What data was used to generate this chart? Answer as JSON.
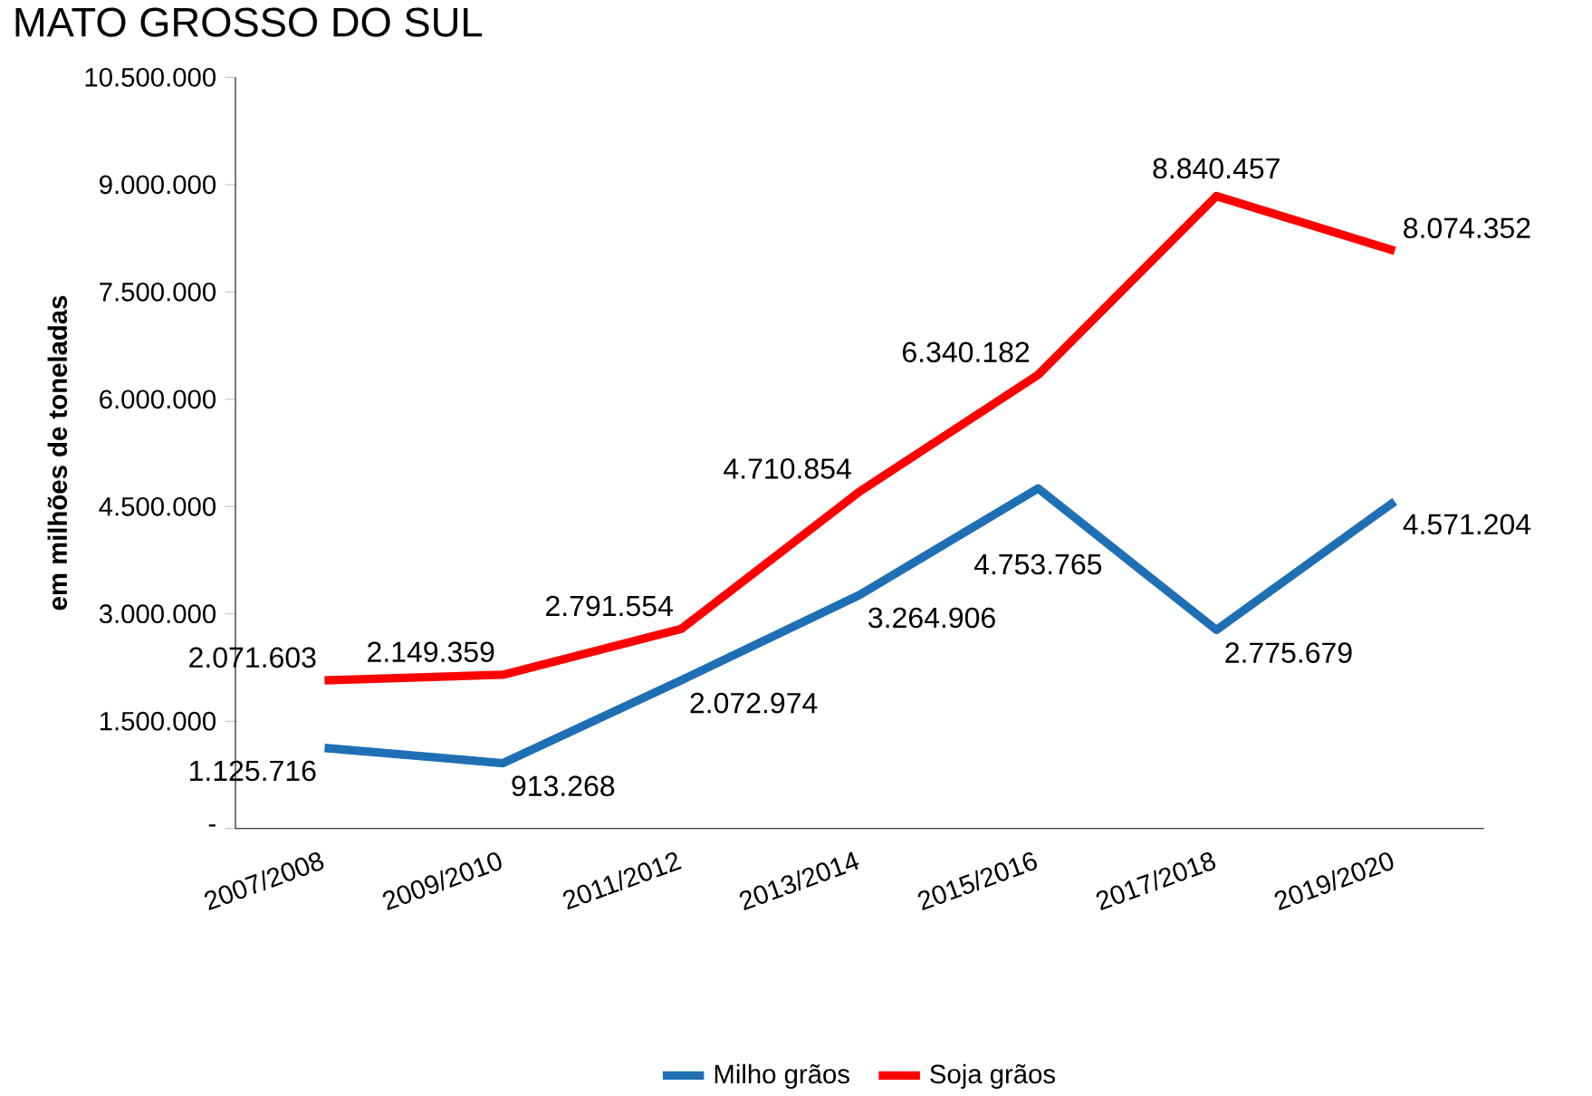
{
  "chart_data": {
    "type": "line",
    "title": "MATO GROSSO DO SUL",
    "ylabel": "em milhões de toneladas",
    "categories": [
      "2007/2008",
      "2009/2010",
      "2011/2012",
      "2013/2014",
      "2015/2016",
      "2017/2018",
      "2019/2020"
    ],
    "series": [
      {
        "name": "Milho grãos",
        "color": "#1f6fb5",
        "values": [
          1125716,
          913268,
          2072974,
          3264906,
          4753765,
          2775679,
          4571204
        ],
        "value_labels": [
          "1.125.716",
          "913.268",
          "2.072.974",
          "3.264.906",
          "4.753.765",
          "2.775.679",
          "4.571.204"
        ]
      },
      {
        "name": "Soja grãos",
        "color": "#ff0000",
        "values": [
          2071603,
          2149359,
          2791554,
          4710854,
          6340182,
          8840457,
          8074352
        ],
        "value_labels": [
          "2.071.603",
          "2.149.359",
          "2.791.554",
          "4.710.854",
          "6.340.182",
          "8.840.457",
          "8.074.352"
        ]
      }
    ],
    "ylim": [
      0,
      10500000
    ],
    "yticks": [
      {
        "value": 0,
        "label": "-"
      },
      {
        "value": 1500000,
        "label": "1.500.000"
      },
      {
        "value": 3000000,
        "label": "3.000.000"
      },
      {
        "value": 4500000,
        "label": "4.500.000"
      },
      {
        "value": 6000000,
        "label": "6.000.000"
      },
      {
        "value": 7500000,
        "label": "7.500.000"
      },
      {
        "value": 9000000,
        "label": "9.000.000"
      },
      {
        "value": 10500000,
        "label": "10.500.000"
      }
    ],
    "legend": "bottom"
  }
}
